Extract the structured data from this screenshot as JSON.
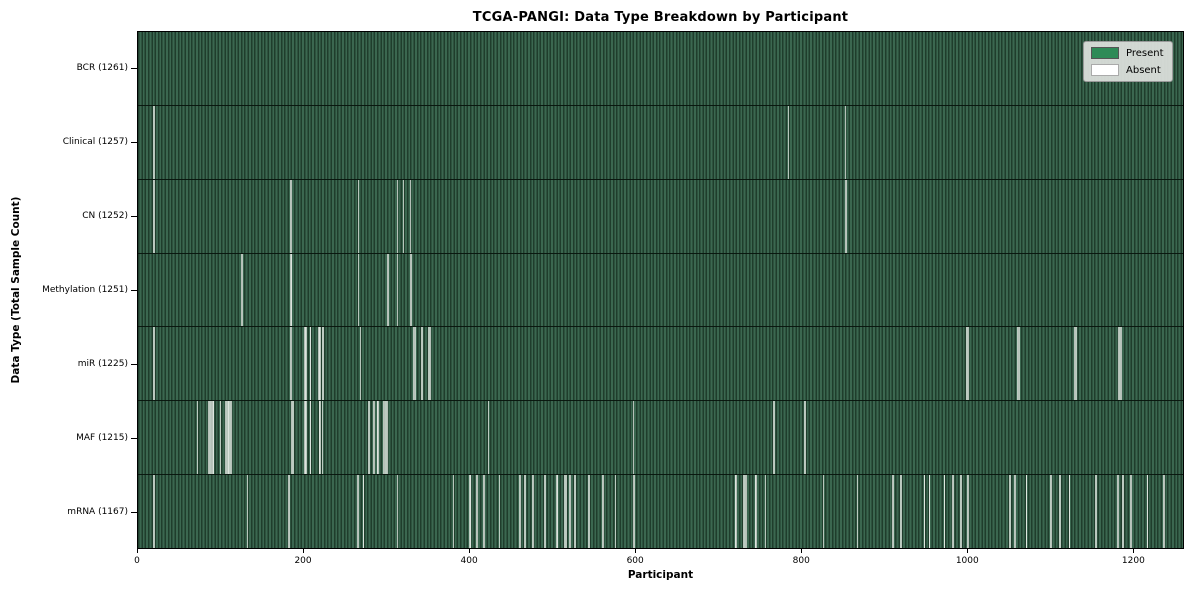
{
  "figure": {
    "title": "TCGA-PANGI: Data Type Breakdown by Participant",
    "xlabel": "Participant",
    "ylabel": "Data Type (Total Sample Count)"
  },
  "chart_data": {
    "type": "heatmap",
    "title": "TCGA-PANGI: Data Type Breakdown by Participant",
    "xlabel": "Participant",
    "ylabel": "Data Type (Total Sample Count)",
    "x_ticks": [
      0,
      200,
      400,
      600,
      800,
      1000,
      1200
    ],
    "x_range": [
      0,
      1261
    ],
    "n_participants": 1261,
    "grid": false,
    "legend_position": "upper right",
    "legend": [
      {
        "label": "Present",
        "color": "#2e8b57"
      },
      {
        "label": "Absent",
        "color": "#ffffff"
      }
    ],
    "colors": {
      "present": "#2e8b57",
      "absent": "#ffffff",
      "bar_edge": "#1f3d2c"
    },
    "categories": [
      "BCR (1261)",
      "Clinical (1257)",
      "CN (1252)",
      "Methylation (1251)",
      "miR (1225)",
      "MAF (1215)",
      "mRNA (1167)"
    ],
    "rows": [
      {
        "data_type": "BCR",
        "label": "BCR (1261)",
        "present_count": 1261,
        "absent_participants": []
      },
      {
        "data_type": "Clinical",
        "label": "Clinical (1257)",
        "present_count": 1257,
        "absent_participants": [
          18,
          19,
          784,
          853
        ]
      },
      {
        "data_type": "CN",
        "label": "CN (1252)",
        "present_count": 1252,
        "absent_participants": [
          18,
          19,
          184,
          266,
          312,
          320,
          328,
          853,
          854
        ]
      },
      {
        "data_type": "Methylation",
        "label": "Methylation (1251)",
        "present_count": 1251,
        "absent_participants": [
          124,
          125,
          184,
          185,
          266,
          301,
          302,
          312,
          328,
          329
        ]
      },
      {
        "data_type": "miR",
        "label": "miR (1225)",
        "present_count": 1225,
        "absent_participants": [
          18,
          19,
          184,
          200,
          201,
          202,
          203,
          207,
          208,
          217,
          218,
          219,
          222,
          223,
          268,
          332,
          333,
          334,
          342,
          343,
          350,
          351,
          352,
          999,
          1000,
          1001,
          1061,
          1062,
          1063,
          1130,
          1131,
          1132,
          1183,
          1184,
          1185,
          1186
        ]
      },
      {
        "data_type": "MAF",
        "label": "MAF (1215)",
        "present_count": 1215,
        "absent_participants": [
          71,
          85,
          86,
          87,
          88,
          89,
          90,
          91,
          99,
          105,
          106,
          107,
          108,
          109,
          110,
          111,
          112,
          185,
          186,
          187,
          200,
          201,
          202,
          203,
          207,
          208,
          218,
          219,
          222,
          278,
          279,
          284,
          285,
          288,
          289,
          296,
          297,
          298,
          299,
          300,
          422,
          597,
          766,
          767,
          804,
          805
        ]
      },
      {
        "data_type": "mRNA",
        "label": "mRNA (1167)",
        "present_count": 1167,
        "absent_participants": [
          18,
          19,
          131,
          181,
          182,
          264,
          265,
          271,
          272,
          312,
          380,
          400,
          401,
          408,
          409,
          416,
          417,
          436,
          460,
          461,
          466,
          467,
          476,
          477,
          490,
          491,
          505,
          506,
          514,
          515,
          516,
          520,
          521,
          526,
          527,
          543,
          544,
          560,
          561,
          575,
          597,
          598,
          720,
          721,
          730,
          731,
          733,
          734,
          744,
          745,
          746,
          756,
          826,
          868,
          910,
          911,
          920,
          921,
          948,
          949,
          954,
          955,
          972,
          973,
          982,
          983,
          992,
          993,
          1000,
          1001,
          1051,
          1052,
          1057,
          1058,
          1071,
          1072,
          1101,
          1102,
          1111,
          1112,
          1123,
          1124,
          1155,
          1156,
          1181,
          1182,
          1187,
          1188,
          1197,
          1198,
          1217,
          1218,
          1237,
          1238
        ]
      }
    ]
  }
}
